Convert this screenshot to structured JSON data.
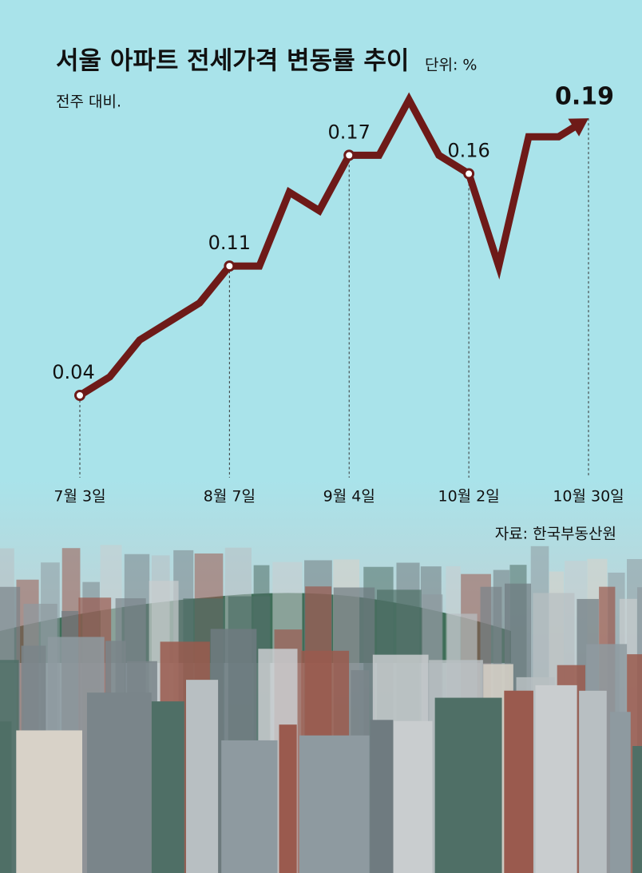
{
  "chart_data": {
    "type": "line",
    "title": "서울 아파트 전세가격 변동률 추이",
    "unit": "단위: %",
    "subtitle": "전주 대비.",
    "source": "자료: 한국부동산원",
    "categories": [
      "7월 3일",
      null,
      null,
      null,
      null,
      "8월 7일",
      null,
      null,
      null,
      "9월 4일",
      null,
      null,
      null,
      "10월 2일",
      null,
      null,
      null,
      "10월 30일"
    ],
    "series": [
      {
        "name": null,
        "color": "#6e1a18",
        "values": [
          0.04,
          0.05,
          0.07,
          0.08,
          0.09,
          0.11,
          0.11,
          0.15,
          0.14,
          0.17,
          0.17,
          0.2,
          0.17,
          0.16,
          0.11,
          0.18,
          0.18,
          0.19
        ],
        "value_labels": [
          "0.04",
          null,
          null,
          null,
          null,
          "0.11",
          null,
          null,
          null,
          "0.17",
          null,
          null,
          null,
          "0.16",
          null,
          null,
          null,
          "0.19"
        ]
      }
    ],
    "ylim": [
      0,
      0.2
    ]
  }
}
